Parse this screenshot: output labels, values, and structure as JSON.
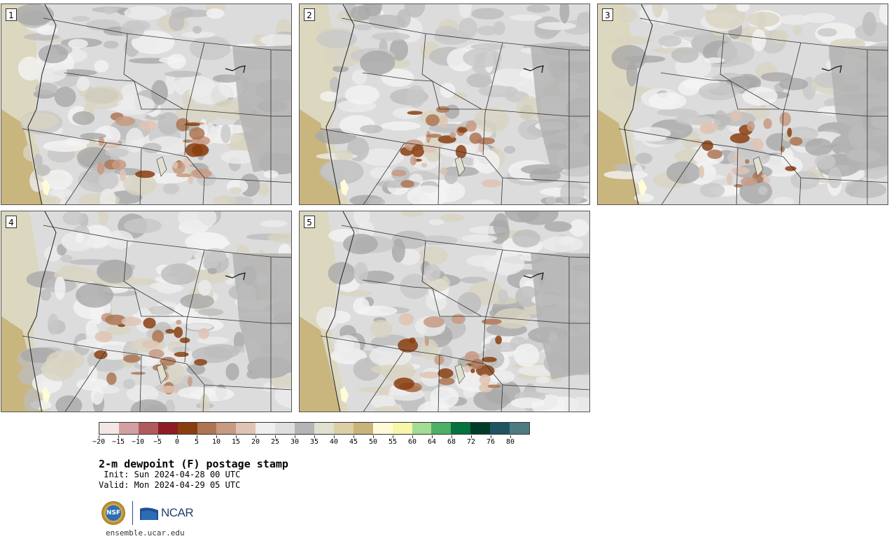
{
  "panels": [
    {
      "label": "1"
    },
    {
      "label": "2"
    },
    {
      "label": "3"
    },
    {
      "label": "4"
    },
    {
      "label": "5"
    }
  ],
  "colorbar": {
    "colors": [
      "#f2e6e6",
      "#d2a0a0",
      "#b05a5e",
      "#8f1c24",
      "#8a3e10",
      "#ad7554",
      "#c79a82",
      "#dfc3b3",
      "#efefef",
      "#dfdfdf",
      "#b5b5b5",
      "#e0dfd0",
      "#dccfa4",
      "#c9b37a",
      "#fffbd9",
      "#f7f6a9",
      "#a4dc95",
      "#4faf68",
      "#06723d",
      "#003c2a",
      "#1e5560",
      "#4c7b82"
    ],
    "ticks": [
      "−20",
      "−15",
      "−10",
      "−5",
      "0",
      "5",
      "10",
      "15",
      "20",
      "25",
      "30",
      "35",
      "40",
      "45",
      "50",
      "55",
      "60",
      "64",
      "68",
      "72",
      "76",
      "80"
    ]
  },
  "title": "2-m dewpoint (F) postage stamp",
  "init": " Init: Sun 2024-04-28 00 UTC",
  "valid": "Valid: Mon 2024-04-29 05 UTC",
  "logos": {
    "nsf": "NSF",
    "ncar": "NCAR"
  },
  "url": "ensemble.ucar.edu"
}
